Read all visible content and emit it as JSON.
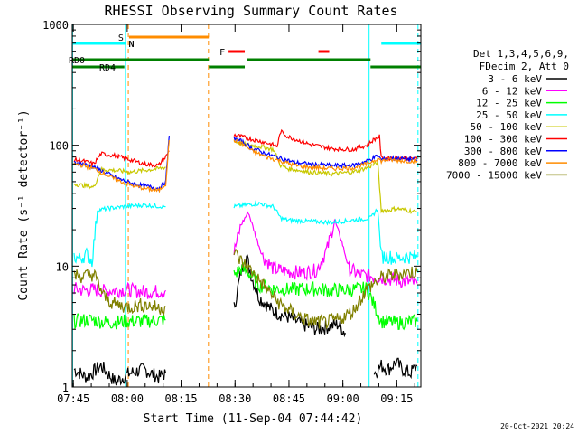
{
  "chart_data": {
    "type": "line",
    "title": "RHESSI Observing Summary Count Rates",
    "xlabel": "Start Time (11-Sep-04 07:44:42)",
    "ylabel": "Count Rate (s⁻¹ detector⁻¹)",
    "x_ticks": [
      "07:45",
      "08:00",
      "08:15",
      "08:30",
      "08:45",
      "09:00",
      "09:15"
    ],
    "x_tick_minutes": [
      0.3,
      15.3,
      30.3,
      45.3,
      60.3,
      75.3,
      90.3
    ],
    "xlim_minutes": [
      0,
      97
    ],
    "y_scale": "log",
    "ylim": [
      1,
      1000
    ],
    "y_ticks": [
      "1",
      "10",
      "100",
      "1000"
    ],
    "y_tick_values": [
      1,
      10,
      100,
      1000
    ],
    "legend_header": [
      "Det 1,3,4,5,6,9,",
      "FDecim 2, Att 0"
    ],
    "legend_position": "right",
    "series": [
      {
        "name": "3 - 6 keV",
        "color": "#000000",
        "segments": [
          {
            "x": [
              0.5,
              4,
              8,
              12,
              16,
              20,
              24,
              26
            ],
            "y": [
              1.4,
              1.2,
              1.5,
              1.1,
              1.3,
              1.4,
              1.2,
              1.3
            ]
          },
          {
            "x": [
              45,
              47,
              48.5,
              50,
              52,
              56,
              60,
              64,
              68,
              72,
              74,
              76
            ],
            "y": [
              4.5,
              9,
              12,
              8,
              5.5,
              4.2,
              3.8,
              3.3,
              3,
              3.2,
              3.3,
              2.8
            ]
          },
          {
            "x": [
              84,
              86,
              88,
              90,
              92,
              94,
              96
            ],
            "y": [
              1.3,
              1.5,
              1.4,
              1.6,
              1.4,
              1.3,
              1.5
            ]
          }
        ]
      },
      {
        "name": "6 - 12 keV",
        "color": "#ff00ff",
        "segments": [
          {
            "x": [
              0.5,
              3,
              6,
              9,
              12,
              15,
              18,
              22,
              26
            ],
            "y": [
              6.5,
              6.3,
              6.4,
              6.2,
              6.3,
              6.4,
              6.2,
              6.1,
              6.3
            ]
          },
          {
            "x": [
              45,
              47,
              49,
              51,
              53,
              56,
              60,
              64,
              68,
              71,
              73,
              75,
              77,
              80,
              84,
              88,
              92,
              96
            ],
            "y": [
              13,
              22,
              28,
              18,
              12,
              9.5,
              9,
              8.8,
              9.2,
              14,
              24,
              16,
              9.5,
              8.5,
              8.2,
              7.8,
              7.5,
              7.2
            ]
          }
        ]
      },
      {
        "name": "12 - 25 keV",
        "color": "#00ff00",
        "segments": [
          {
            "x": [
              0.5,
              5,
              10,
              15,
              20,
              26
            ],
            "y": [
              3.5,
              3.6,
              3.4,
              3.5,
              3.5,
              3.6
            ]
          },
          {
            "x": [
              45,
              47,
              49,
              52,
              56,
              60,
              66,
              72,
              78,
              82,
              86,
              90,
              96
            ],
            "y": [
              8.5,
              9.5,
              8.8,
              7,
              6.5,
              6.4,
              6.5,
              6.3,
              6.4,
              6.5,
              3.5,
              3.4,
              3.5
            ]
          }
        ]
      },
      {
        "name": "25 - 50 keV",
        "color": "#00ffff",
        "segments": [
          {
            "x": [
              0.5,
              2,
              4,
              5.5,
              7,
              10,
              14,
              20,
              26
            ],
            "y": [
              12,
              11.5,
              12.5,
              11,
              29,
              30,
              31,
              32,
              31
            ]
          },
          {
            "x": [
              45,
              48,
              52,
              56,
              58,
              60,
              66,
              72,
              78,
              83,
              85,
              86,
              88,
              90,
              93,
              96
            ],
            "y": [
              31,
              32,
              33,
              31,
              25,
              24,
              23.5,
              23,
              24,
              25,
              30,
              12,
              12,
              11.5,
              12,
              11.8
            ]
          }
        ]
      },
      {
        "name": "50 - 100 keV",
        "color": "#c8c800",
        "segments": [
          {
            "x": [
              0.5,
              2,
              4,
              6,
              8,
              12,
              16,
              20,
              24,
              26
            ],
            "y": [
              48,
              47,
              46,
              45,
              63,
              62,
              60,
              62,
              64,
              66
            ]
          },
          {
            "x": [
              45,
              48,
              52,
              56,
              58,
              60,
              66,
              72,
              78,
              82,
              85,
              86,
              88,
              90,
              93,
              96
            ],
            "y": [
              108,
              102,
              98,
              92,
              68,
              64,
              60,
              58,
              60,
              65,
              72,
              29,
              29,
              30,
              29,
              28
            ]
          }
        ]
      },
      {
        "name": "100 - 300 keV",
        "color": "#ff0000",
        "segments": [
          {
            "x": [
              0.5,
              3,
              6,
              8,
              12,
              16,
              20,
              24,
              26,
              27
            ],
            "y": [
              76,
              74,
              70,
              85,
              82,
              76,
              70,
              68,
              80,
              90
            ]
          },
          {
            "x": [
              45,
              47,
              50,
              54,
              57,
              58,
              60,
              66,
              72,
              78,
              82,
              84,
              85.5,
              86,
              88,
              90,
              93,
              96
            ],
            "y": [
              122,
              118,
              112,
              105,
              98,
              130,
              118,
              102,
              94,
              92,
              100,
              112,
              118,
              78,
              78,
              79,
              78,
              77
            ]
          }
        ]
      },
      {
        "name": "300 - 800 keV",
        "color": "#0000ff",
        "segments": [
          {
            "x": [
              0.5,
              3,
              6,
              9,
              12,
              16,
              20,
              24,
              26,
              27
            ],
            "y": [
              72,
              70,
              66,
              60,
              54,
              49,
              46,
              44,
              50,
              120
            ]
          },
          {
            "x": [
              45,
              47,
              50,
              54,
              58,
              62,
              66,
              72,
              78,
              82,
              85,
              86,
              88,
              90,
              93,
              96
            ],
            "y": [
              115,
              108,
              95,
              85,
              78,
              72,
              70,
              68,
              68,
              74,
              82,
              76,
              78,
              78,
              77,
              76
            ]
          }
        ]
      },
      {
        "name": "800 - 7000 keV",
        "color": "#ff8c00",
        "segments": [
          {
            "x": [
              0.5,
              3,
              6,
              9,
              12,
              16,
              20,
              24,
              26,
              27
            ],
            "y": [
              70,
              68,
              64,
              58,
              52,
              47,
              44,
              42,
              48,
              110
            ]
          },
          {
            "x": [
              45,
              47,
              50,
              54,
              58,
              62,
              66,
              72,
              78,
              82,
              85,
              86,
              88,
              90,
              93,
              96
            ],
            "y": [
              110,
              104,
              90,
              80,
              74,
              68,
              66,
              64,
              65,
              70,
              78,
              74,
              76,
              75,
              74,
              74
            ]
          }
        ]
      },
      {
        "name": "7000 - 15000 keV",
        "color": "#808000",
        "segments": [
          {
            "x": [
              0.5,
              3,
              6,
              9,
              12,
              16,
              20,
              24,
              26
            ],
            "y": [
              8.5,
              8.2,
              8.6,
              5.5,
              4.8,
              4.6,
              4.8,
              4.5,
              4.6
            ]
          },
          {
            "x": [
              45,
              47,
              50,
              54,
              58,
              62,
              66,
              70,
              74,
              78,
              82,
              86,
              90,
              93,
              96
            ],
            "y": [
              13,
              11,
              9,
              6.5,
              4.8,
              4,
              3.5,
              3.4,
              3.6,
              4.2,
              6.5,
              8,
              8.5,
              8.8,
              9
            ]
          }
        ]
      }
    ],
    "flag_bars": [
      {
        "label": "S",
        "color": "#ff8c00",
        "x0": 15.8,
        "x1": 38,
        "level": 0
      },
      {
        "label": "N",
        "color": "#00ffff",
        "x0": 0,
        "x1": 14.7,
        "level": 1
      },
      {
        "label": "N",
        "color": "#00ffff",
        "x0": 86,
        "x1": 97,
        "level": 1
      },
      {
        "label": "F",
        "color": "#ff0000",
        "x0": 43.5,
        "x1": 48,
        "level": 2
      },
      {
        "label": "",
        "color": "#ff0000",
        "x0": 68.5,
        "x1": 71.5,
        "level": 2
      },
      {
        "label": "RD0",
        "color": "#008000",
        "x0": 0,
        "x1": 38,
        "level": 3
      },
      {
        "label": "",
        "color": "#008000",
        "x0": 48.5,
        "x1": 83,
        "level": 3
      },
      {
        "label": "RD4",
        "color": "#008000",
        "x0": 0,
        "x1": 14.5,
        "level": 4
      },
      {
        "label": "",
        "color": "#008000",
        "x0": 38,
        "x1": 48,
        "level": 4
      },
      {
        "label": "",
        "color": "#008000",
        "x0": 83,
        "x1": 97,
        "level": 4
      }
    ],
    "vlines": [
      {
        "x": 0.1,
        "color": "#00ffff",
        "style": "solid"
      },
      {
        "x": 14.8,
        "color": "#00ffff",
        "style": "solid"
      },
      {
        "x": 15.6,
        "color": "#ff8c00",
        "style": "dashed"
      },
      {
        "x": 37.9,
        "color": "#ff8c00",
        "style": "dashed"
      },
      {
        "x": 82.6,
        "color": "#00ffff",
        "style": "solid"
      },
      {
        "x": 96.2,
        "color": "#00ffff",
        "style": "dashed"
      }
    ],
    "footer_date": "20-Oct-2021 20:24"
  }
}
